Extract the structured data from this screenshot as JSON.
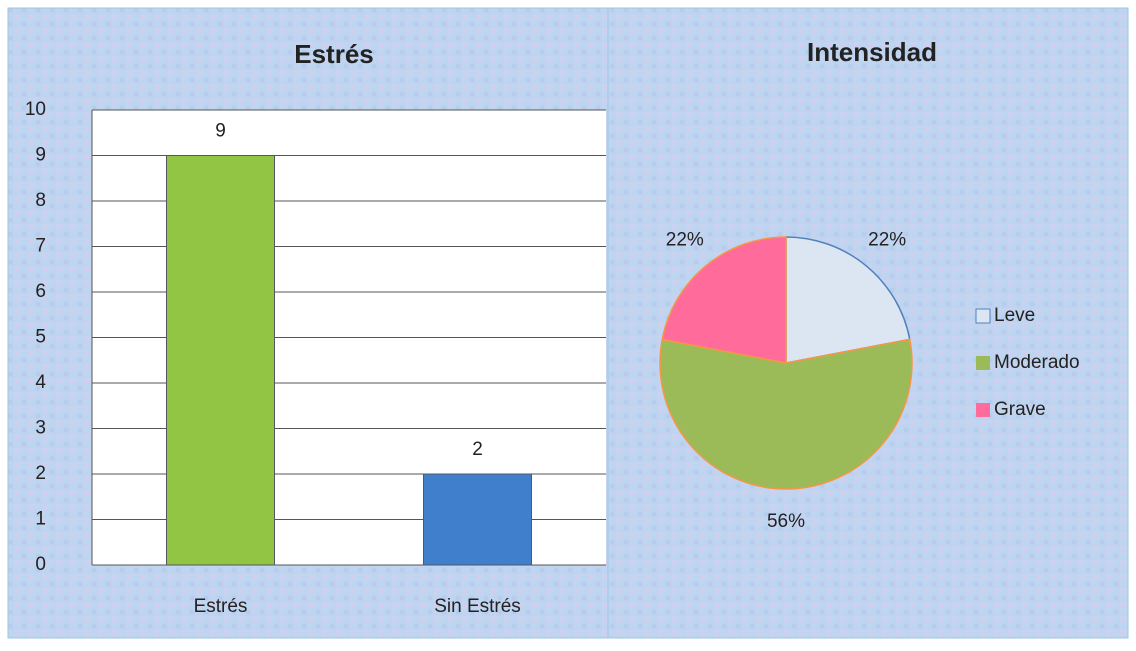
{
  "chart_data": [
    {
      "type": "bar",
      "title": "Estrés",
      "categories": [
        "Estrés",
        "Sin Estrés"
      ],
      "values": [
        9,
        2
      ],
      "colors": [
        "#92c544",
        "#3f7fcc"
      ],
      "ylim": [
        0,
        10
      ],
      "yticks": [
        0,
        1,
        2,
        3,
        4,
        5,
        6,
        7,
        8,
        9,
        10
      ],
      "grid": true
    },
    {
      "type": "pie",
      "title": "Intensidad",
      "categories": [
        "Leve",
        "Moderado",
        "Grave"
      ],
      "values": [
        22,
        56,
        22
      ],
      "value_labels": [
        "22%",
        "56%",
        "22%"
      ],
      "colors": [
        "#dce6f2",
        "#9bbb59",
        "#ff6b9a"
      ],
      "legend": "right"
    }
  ]
}
